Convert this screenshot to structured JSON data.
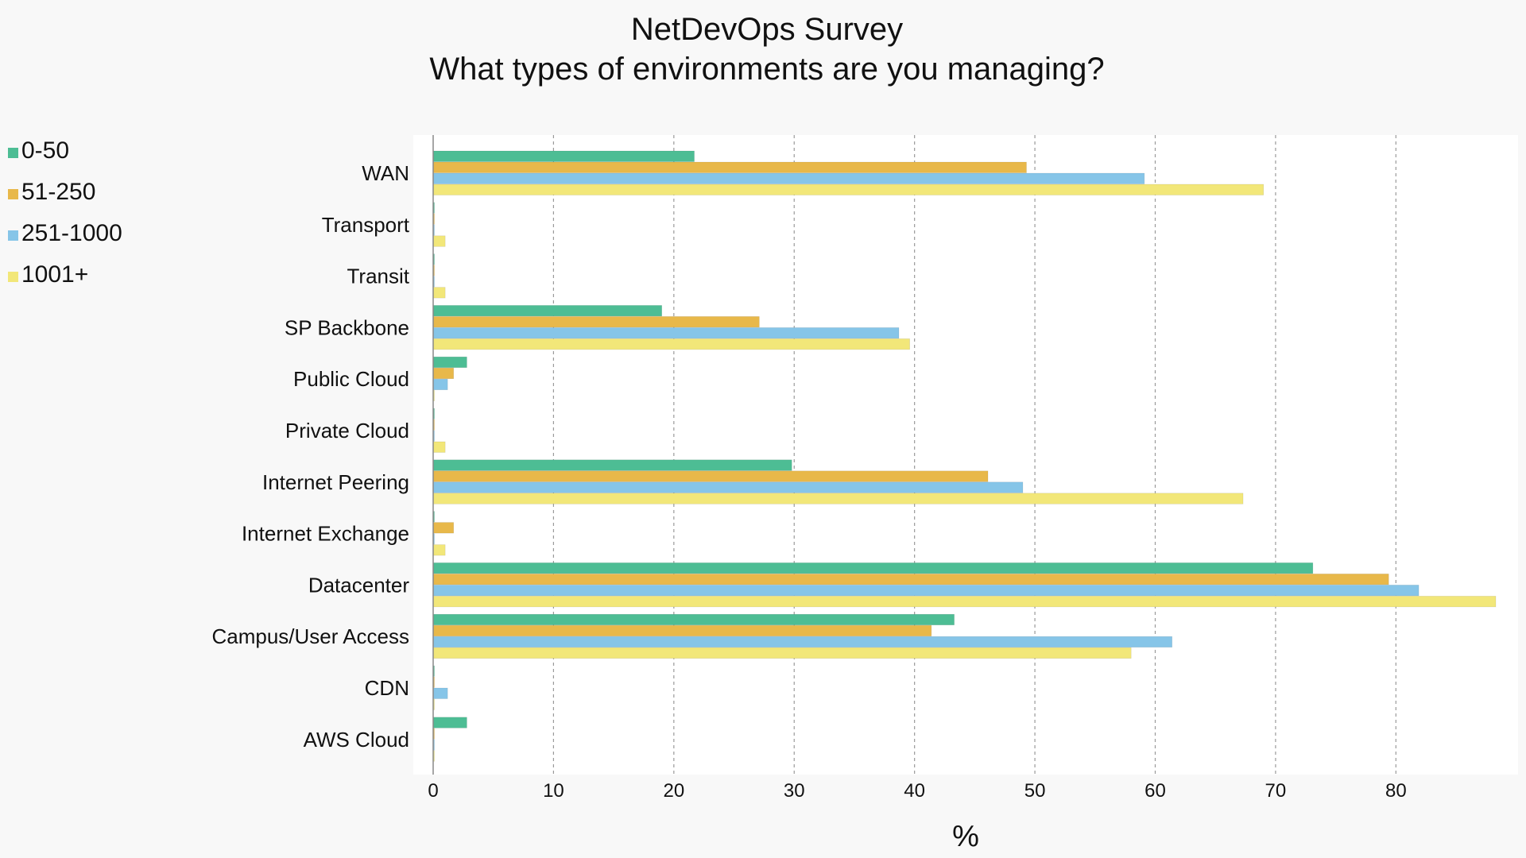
{
  "chart_data": {
    "type": "bar",
    "orientation": "horizontal",
    "title": "NetDevOps Survey",
    "subtitle": "What types of environments are you managing?",
    "xlabel": "%",
    "ylabel": "",
    "xlim": [
      0,
      89
    ],
    "xticks": [
      0,
      10,
      20,
      30,
      40,
      50,
      60,
      70,
      80
    ],
    "grid": true,
    "legend_position": "top-left",
    "categories": [
      "WAN",
      "Transport",
      "Transit",
      "SP Backbone",
      "Public Cloud",
      "Private Cloud",
      "Internet Peering",
      "Internet Exchange",
      "Datacenter",
      "Campus/User Access",
      "CDN",
      "AWS Cloud"
    ],
    "series": [
      {
        "name": "0-50",
        "color": "#4dbd94",
        "values": [
          21.7,
          0,
          0,
          19,
          2.8,
          0,
          29.8,
          0,
          73.1,
          43.3,
          0,
          2.8
        ]
      },
      {
        "name": "51-250",
        "color": "#e8b84a",
        "values": [
          49.3,
          0,
          0,
          27.1,
          1.7,
          0,
          46.1,
          1.7,
          79.4,
          41.4,
          0,
          0
        ]
      },
      {
        "name": "251-1000",
        "color": "#86c5e8",
        "values": [
          59.1,
          0,
          0,
          38.7,
          1.2,
          0,
          49,
          0,
          81.9,
          61.4,
          1.2,
          0
        ]
      },
      {
        "name": "1001+",
        "color": "#f2e779",
        "values": [
          69,
          1,
          1,
          39.6,
          0,
          1,
          67.3,
          1,
          88.3,
          58,
          0,
          0
        ]
      }
    ]
  }
}
